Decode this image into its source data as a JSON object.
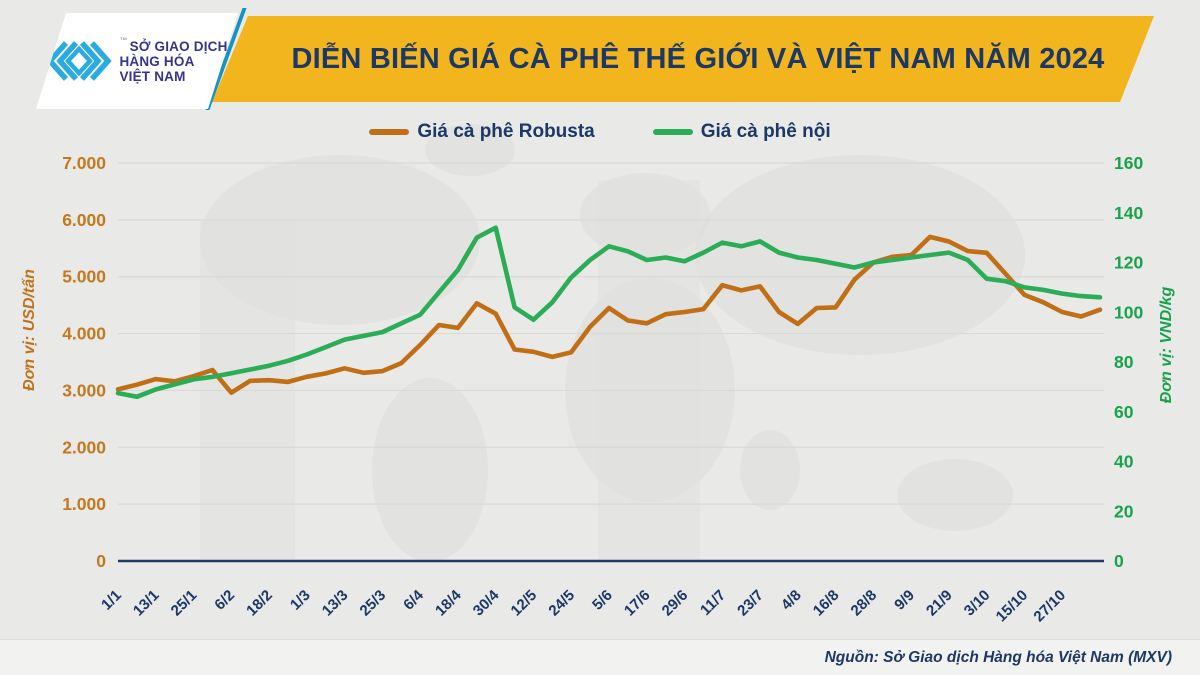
{
  "header": {
    "title": "DIỄN BIẾN GIÁ CÀ PHÊ THẾ GIỚI VÀ VIỆT NAM NĂM 2024",
    "logo": {
      "line1": "SỞ GIAO DỊCH",
      "line2": "HÀNG HÓA",
      "line3": "VIỆT NAM",
      "trademark": "™",
      "icon": "mxv-chevron-logo",
      "icon_color": "#29abe2",
      "text_color": "#37338a"
    },
    "banner_color": "#f2b51d",
    "title_color": "#1b3866"
  },
  "legend": [
    {
      "label": "Giá cà phê Robusta",
      "color": "#c06f16"
    },
    {
      "label": "Giá cà phê nội",
      "color": "#2bac57"
    }
  ],
  "footer": {
    "source": "Nguồn: Sở Giao dịch Hàng hóa Việt Nam (MXV)"
  },
  "colors": {
    "background": "#e9e9e7",
    "gridline": "#d9d9d6",
    "axis_line": "#203a68",
    "x_label": "#1b3866",
    "left_tick": "#c4791f",
    "right_tick": "#17a34b"
  },
  "chart_data": {
    "type": "line",
    "title": "DIỄN BIẾN GIÁ CÀ PHÊ THẾ GIỚI VÀ VIỆT NAM NĂM 2024",
    "x_tick_labels": [
      "1/1",
      "13/1",
      "25/1",
      "6/2",
      "18/2",
      "1/3",
      "13/3",
      "25/3",
      "6/4",
      "18/4",
      "30/4",
      "12/5",
      "24/5",
      "5/6",
      "17/6",
      "29/6",
      "11/7",
      "23/7",
      "4/8",
      "16/8",
      "28/8",
      "9/9",
      "21/9",
      "3/10",
      "15/10",
      "27/10"
    ],
    "x_note": "series sampled every 6 days from 1/1 to 8/11 (2 samples per labeled 12-day tick, 53 points, extends ~1 tick past 27/10)",
    "grid": "horizontal-only",
    "legend_position": "top-center",
    "y_left": {
      "label": "Đơn vị: USD/tấn",
      "range": [
        0,
        7000
      ],
      "tick_values": [
        0,
        1000,
        2000,
        3000,
        4000,
        5000,
        6000,
        7000
      ],
      "tick_labels": [
        "0",
        "1.000",
        "2.000",
        "3.000",
        "4.000",
        "5.000",
        "6.000",
        "7.000"
      ]
    },
    "y_right": {
      "label": "Đơn vị: VND/kg",
      "range": [
        0,
        160
      ],
      "tick_values": [
        0,
        20,
        40,
        60,
        80,
        100,
        120,
        140,
        160
      ],
      "tick_labels": [
        "0",
        "20",
        "40",
        "60",
        "80",
        "100",
        "120",
        "140",
        "160"
      ]
    },
    "series": [
      {
        "name": "Giá cà phê Robusta",
        "axis": "left",
        "unit": "USD/tấn",
        "color": "#c06f16",
        "values": [
          3020,
          3100,
          3200,
          3160,
          3250,
          3360,
          2960,
          3170,
          3180,
          3150,
          3240,
          3300,
          3390,
          3310,
          3340,
          3480,
          3800,
          4150,
          4100,
          4530,
          4350,
          3720,
          3680,
          3590,
          3670,
          4120,
          4450,
          4230,
          4180,
          4340,
          4380,
          4430,
          4850,
          4760,
          4830,
          4380,
          4170,
          4450,
          4460,
          4950,
          5250,
          5350,
          5380,
          5700,
          5620,
          5450,
          5420,
          5050,
          4680,
          4550,
          4380,
          4300,
          4420
        ]
      },
      {
        "name": "Giá cà phê nội",
        "axis": "right",
        "unit": "VND/kg",
        "color": "#2bac57",
        "values": [
          67.5,
          66,
          69,
          71,
          73,
          74,
          75.5,
          77,
          78.5,
          80.5,
          83,
          86,
          89,
          90.5,
          92,
          95.5,
          99,
          108,
          117,
          130,
          134,
          102,
          97,
          104,
          114,
          121,
          126.5,
          124.5,
          121,
          122,
          120.5,
          124,
          128,
          126.5,
          128.5,
          124,
          122,
          121,
          119.5,
          118,
          120,
          121,
          122,
          123,
          124,
          121,
          113.5,
          112.5,
          110,
          109,
          107.5,
          106.5,
          106
        ]
      }
    ]
  }
}
